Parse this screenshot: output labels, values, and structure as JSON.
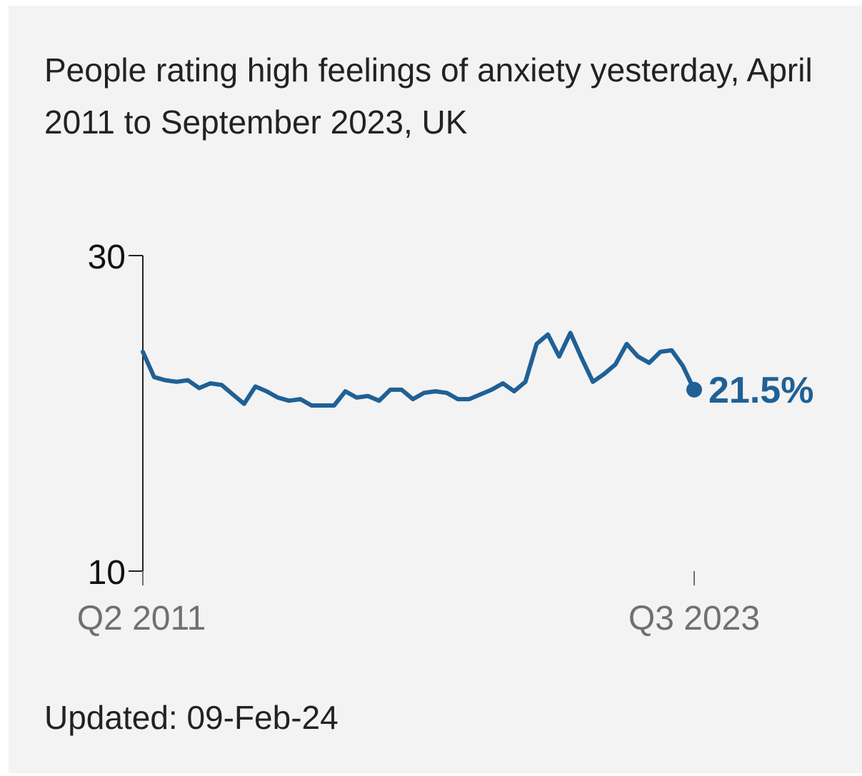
{
  "title": "People rating high feelings of anxiety yesterday, April 2011 to September 2023, UK",
  "updated": "Updated: 09-Feb-24",
  "colors": {
    "background": "#f3f3f3",
    "line": "#206095",
    "text": "#222222",
    "tick_text_x": "#707070"
  },
  "chart_data": {
    "type": "line",
    "title": "People rating high feelings of anxiety yesterday, April 2011 to September 2023, UK",
    "xlabel": "",
    "ylabel": "",
    "ylim": [
      10,
      30
    ],
    "y_ticks": [
      "30",
      "10"
    ],
    "x_ticks": [
      "Q2 2011",
      "Q3 2023"
    ],
    "grid": false,
    "legend": "none",
    "end_label": "21.5%",
    "series": [
      {
        "values": [
          23.9,
          22.3,
          22.1,
          22.0,
          22.1,
          21.6,
          21.9,
          21.8,
          21.2,
          20.6,
          21.7,
          21.4,
          21.0,
          20.8,
          20.9,
          20.5,
          20.5,
          20.5,
          21.4,
          21.0,
          21.1,
          20.8,
          21.5,
          21.5,
          20.9,
          21.3,
          21.4,
          21.3,
          20.9,
          20.9,
          21.2,
          21.5,
          21.9,
          21.4,
          22.0,
          24.4,
          25.0,
          23.6,
          25.1,
          23.5,
          22.0,
          22.5,
          23.1,
          24.4,
          23.6,
          23.2,
          23.9,
          24.0,
          23.0,
          21.5
        ]
      }
    ]
  }
}
